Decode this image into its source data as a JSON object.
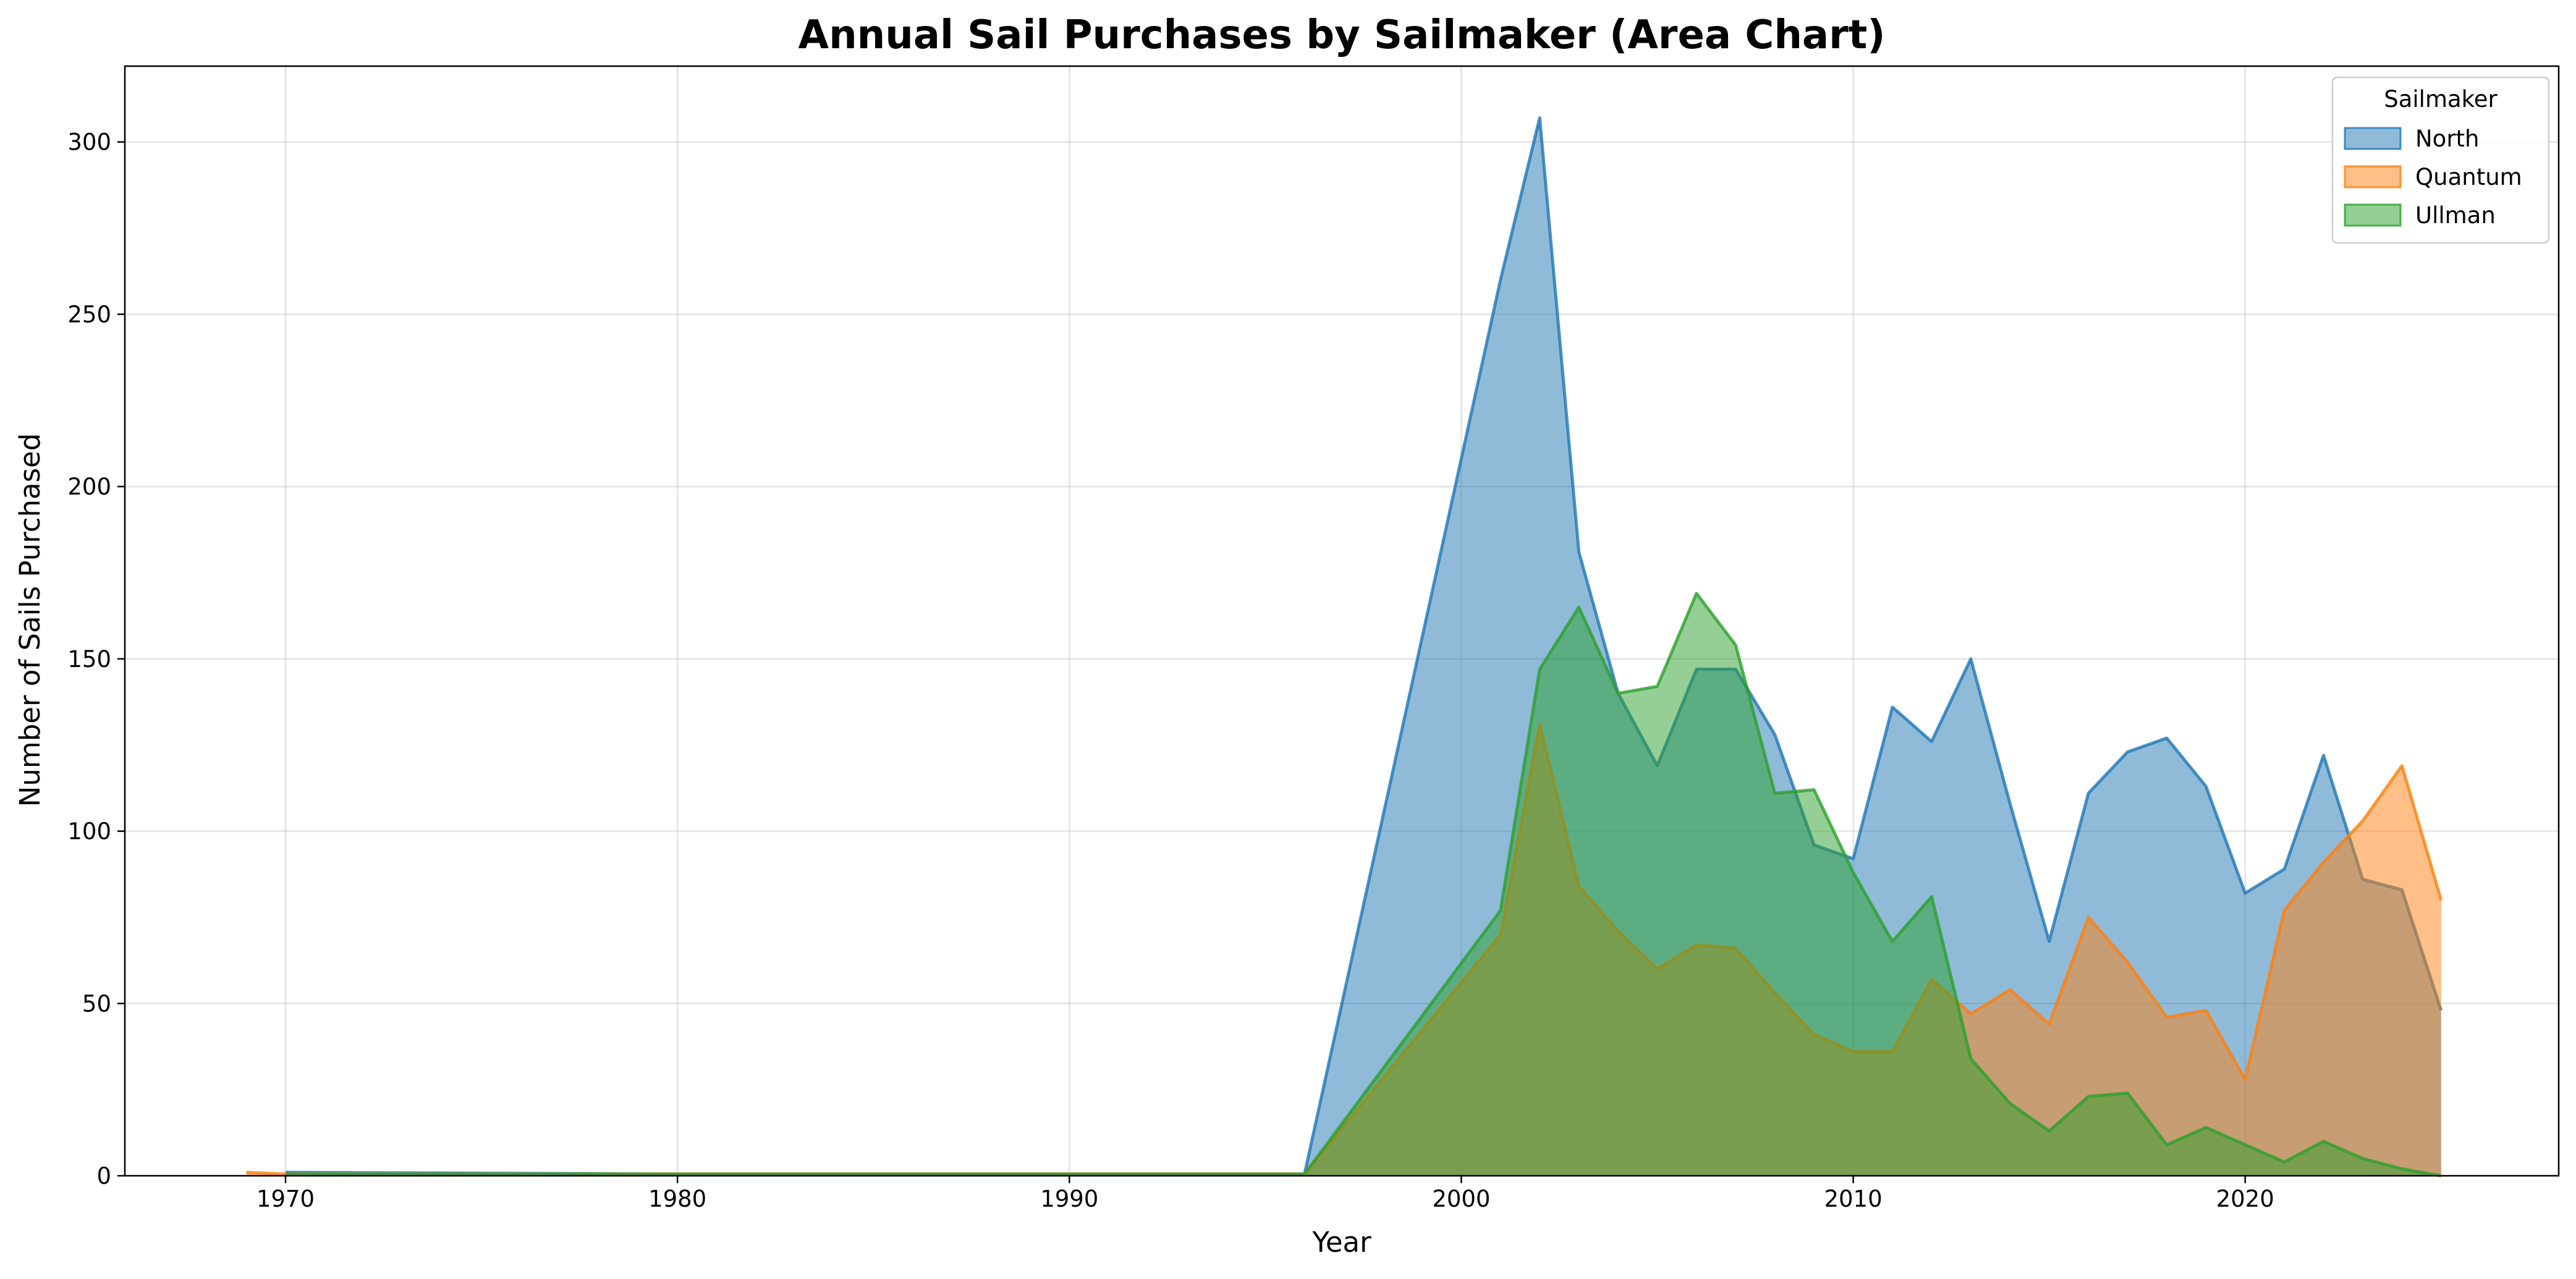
{
  "chart_data": {
    "type": "area",
    "title": "Annual Sail Purchases by Sailmaker (Area Chart)",
    "xlabel": "Year",
    "ylabel": "Number of Sails Purchased",
    "xlim": [
      1965.9,
      2028.0
    ],
    "ylim": [
      0,
      322
    ],
    "xticks": [
      1970,
      1980,
      1990,
      2000,
      2010,
      2020
    ],
    "yticks": [
      0,
      50,
      100,
      150,
      200,
      250,
      300
    ],
    "grid": true,
    "legend": {
      "title": "Sailmaker",
      "placement": "top-right"
    },
    "stacked": false,
    "series": [
      {
        "name": "North",
        "color": "#1f77b4",
        "points": [
          [
            1970,
            1
          ],
          [
            1980,
            0.5
          ],
          [
            1990,
            0.5
          ],
          [
            1996,
            0.5
          ],
          [
            2001,
            260
          ],
          [
            2002,
            307
          ],
          [
            2003,
            181
          ],
          [
            2004,
            140
          ],
          [
            2005,
            119
          ],
          [
            2006,
            147
          ],
          [
            2007,
            147
          ],
          [
            2008,
            128
          ],
          [
            2009,
            96
          ],
          [
            2010,
            92
          ],
          [
            2011,
            136
          ],
          [
            2012,
            126
          ],
          [
            2013,
            150
          ],
          [
            2014,
            108
          ],
          [
            2015,
            68
          ],
          [
            2016,
            111
          ],
          [
            2017,
            123
          ],
          [
            2018,
            127
          ],
          [
            2019,
            113
          ],
          [
            2020,
            82
          ],
          [
            2021,
            89
          ],
          [
            2022,
            122
          ],
          [
            2023,
            86
          ],
          [
            2024,
            83
          ],
          [
            2025,
            48
          ]
        ]
      },
      {
        "name": "Quantum",
        "color": "#ff7f0e",
        "points": [
          [
            1969,
            1
          ],
          [
            1970,
            0.5
          ],
          [
            1996,
            0.5
          ],
          [
            2001,
            70
          ],
          [
            2002,
            131
          ],
          [
            2003,
            84
          ],
          [
            2004,
            71
          ],
          [
            2005,
            60
          ],
          [
            2006,
            67
          ],
          [
            2007,
            66
          ],
          [
            2008,
            53
          ],
          [
            2009,
            41
          ],
          [
            2010,
            36
          ],
          [
            2011,
            36
          ],
          [
            2012,
            57
          ],
          [
            2013,
            47
          ],
          [
            2014,
            54
          ],
          [
            2015,
            44
          ],
          [
            2016,
            75
          ],
          [
            2017,
            62
          ],
          [
            2018,
            46
          ],
          [
            2019,
            48
          ],
          [
            2020,
            28
          ],
          [
            2021,
            77
          ],
          [
            2022,
            91
          ],
          [
            2023,
            103
          ],
          [
            2024,
            119
          ],
          [
            2025,
            80
          ]
        ]
      },
      {
        "name": "Ullman",
        "color": "#2ca02c",
        "points": [
          [
            1970,
            0.5
          ],
          [
            1996,
            0.5
          ],
          [
            2001,
            77
          ],
          [
            2002,
            147
          ],
          [
            2003,
            165
          ],
          [
            2004,
            140
          ],
          [
            2005,
            142
          ],
          [
            2006,
            169
          ],
          [
            2007,
            154
          ],
          [
            2008,
            111
          ],
          [
            2009,
            112
          ],
          [
            2010,
            88
          ],
          [
            2011,
            68
          ],
          [
            2012,
            81
          ],
          [
            2013,
            34
          ],
          [
            2014,
            21
          ],
          [
            2015,
            13
          ],
          [
            2016,
            23
          ],
          [
            2017,
            24
          ],
          [
            2018,
            9
          ],
          [
            2019,
            14
          ],
          [
            2020,
            9
          ],
          [
            2021,
            4
          ],
          [
            2022,
            10
          ],
          [
            2023,
            5
          ],
          [
            2024,
            2
          ],
          [
            2025,
            0
          ]
        ]
      }
    ]
  }
}
